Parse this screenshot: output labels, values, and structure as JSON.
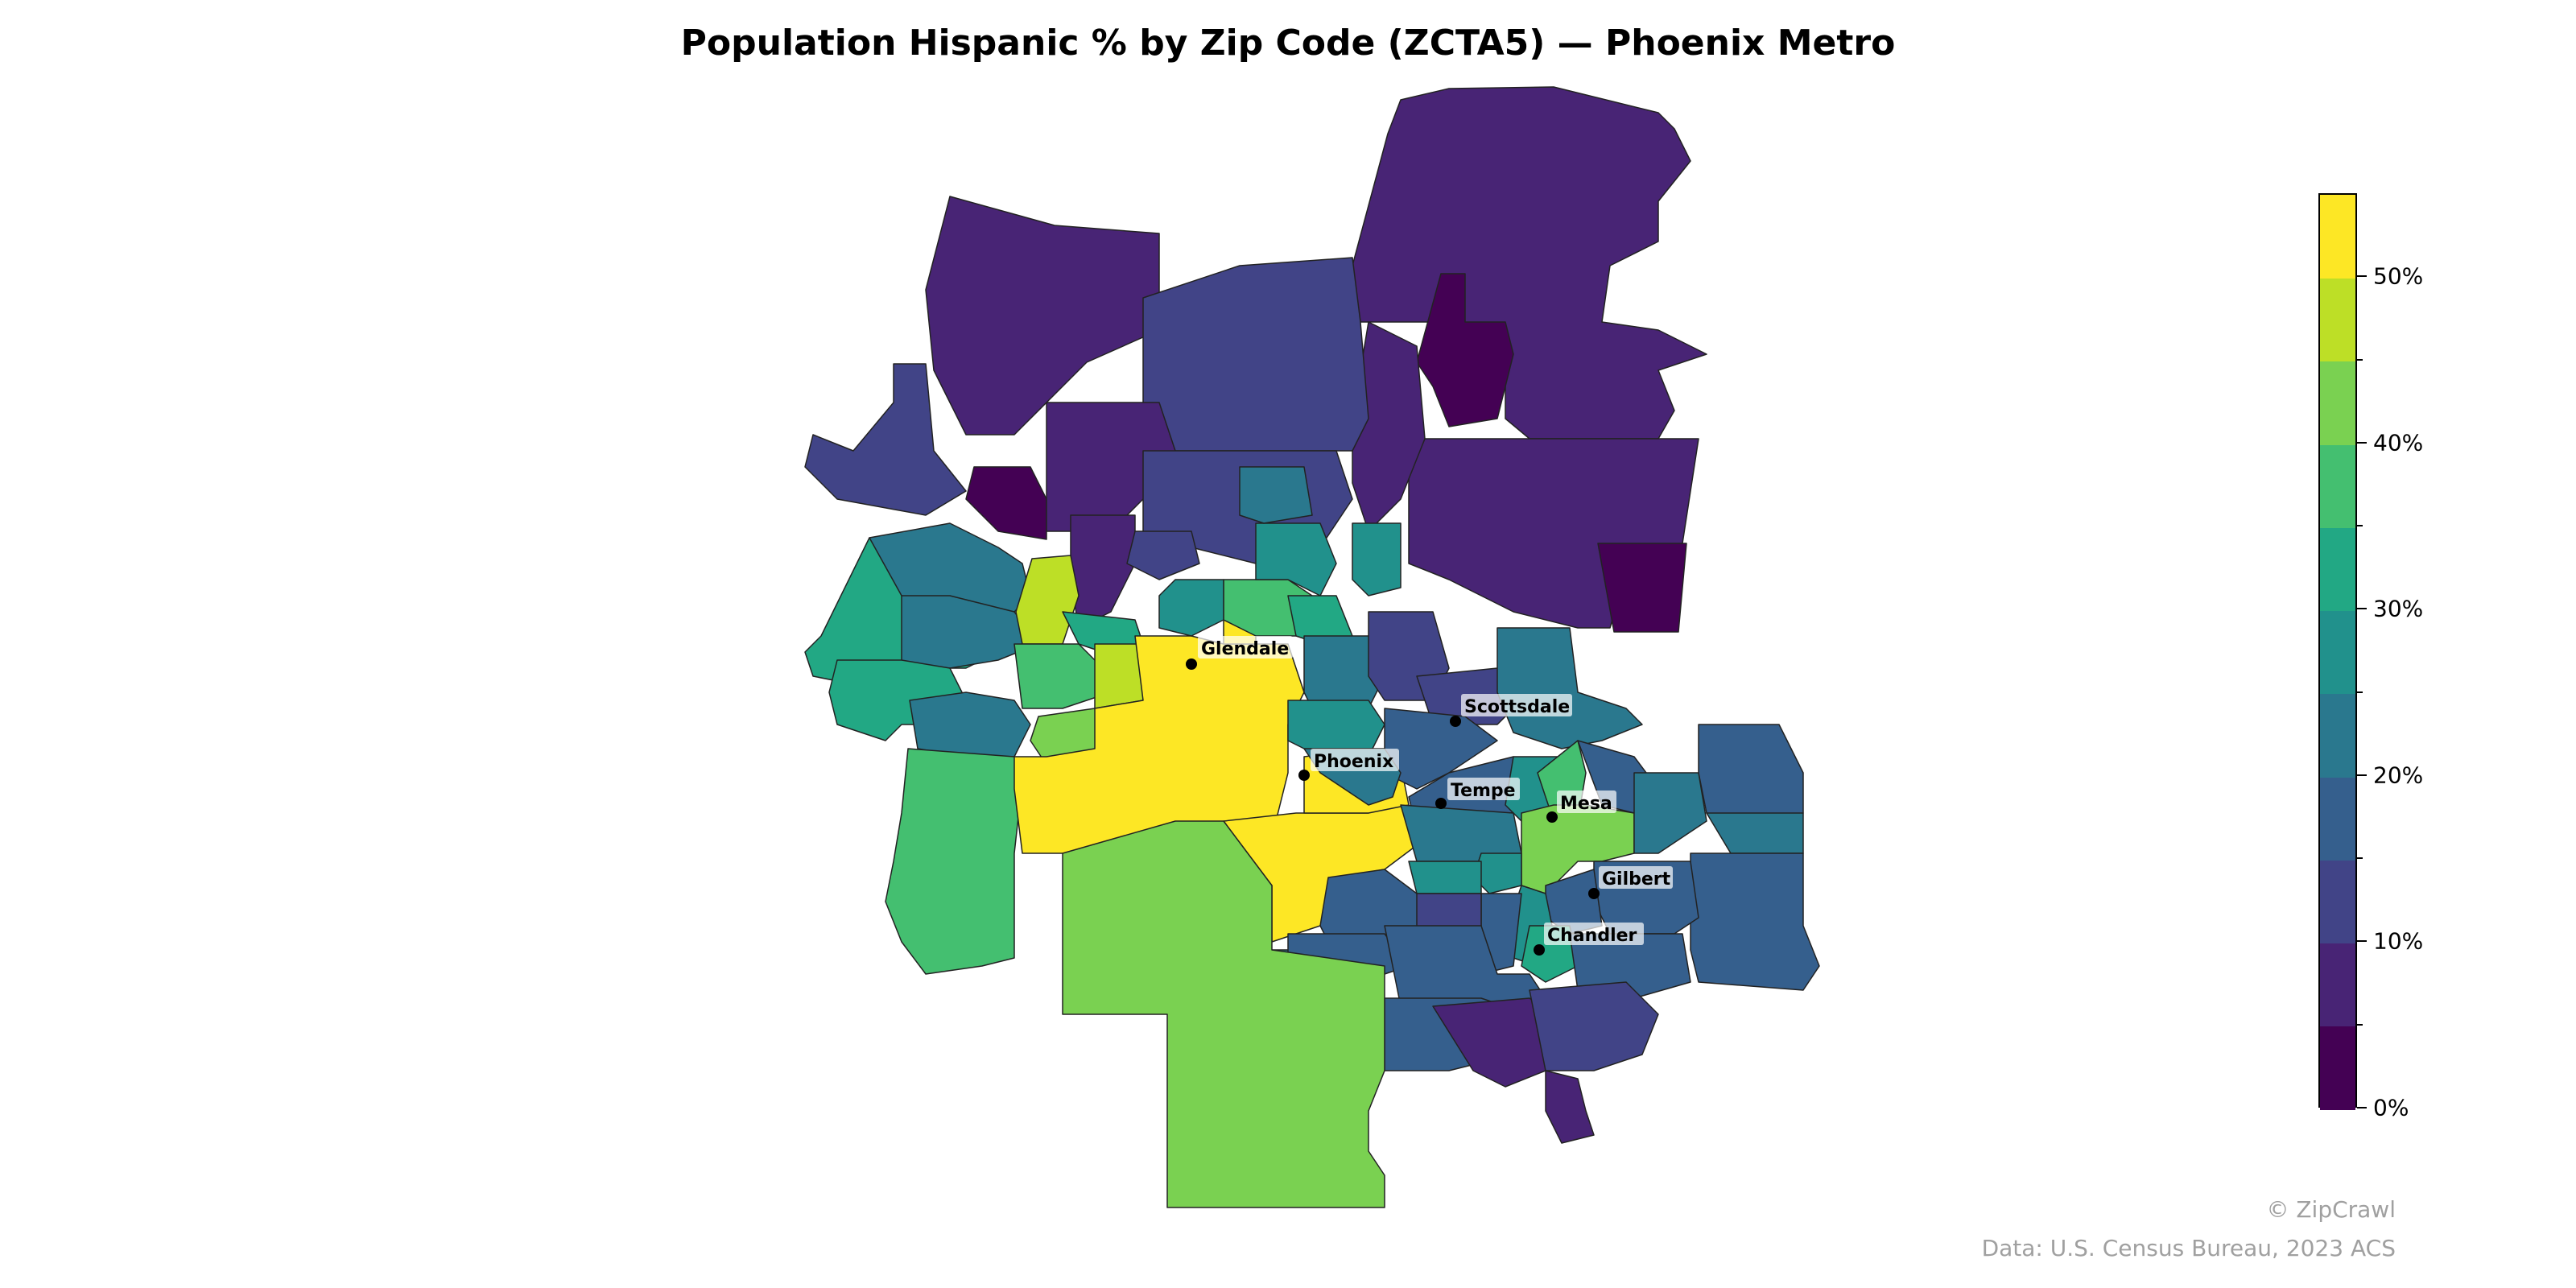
{
  "title": "Population Hispanic % by Zip Code (ZCTA5) — Phoenix Metro",
  "colorbar": {
    "colors": [
      "#440154",
      "#482475",
      "#414487",
      "#355f8d",
      "#2a788e",
      "#21918c",
      "#22a884",
      "#44bf70",
      "#7ad151",
      "#bddf26",
      "#fde725"
    ],
    "ticks": [
      {
        "value": 0,
        "label": "0%"
      },
      {
        "value": 10,
        "label": "10%"
      },
      {
        "value": 20,
        "label": "20%"
      },
      {
        "value": 30,
        "label": "30%"
      },
      {
        "value": 40,
        "label": "40%"
      },
      {
        "value": 50,
        "label": "50%"
      }
    ],
    "range": [
      0,
      55
    ]
  },
  "cities": [
    {
      "name": "Glendale"
    },
    {
      "name": "Scottsdale"
    },
    {
      "name": "Phoenix"
    },
    {
      "name": "Tempe"
    },
    {
      "name": "Mesa"
    },
    {
      "name": "Gilbert"
    },
    {
      "name": "Chandler"
    }
  ],
  "credit": "© ZipCrawl",
  "source": "Data: U.S. Census Bureau, 2023 ACS"
}
